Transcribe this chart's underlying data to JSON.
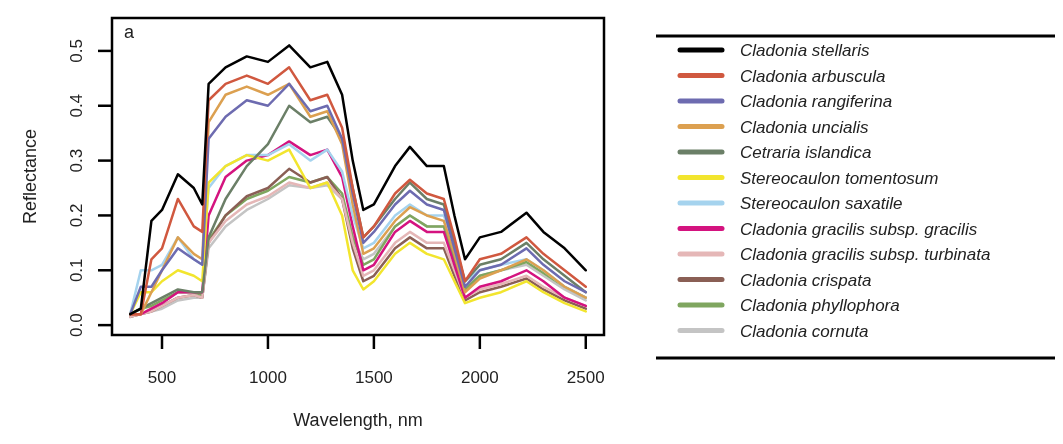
{
  "chart_data": {
    "type": "line",
    "xlabel": "Wavelength, nm",
    "ylabel": "Reflectance",
    "annotations": [
      "a"
    ],
    "x": [
      350,
      400,
      450,
      500,
      575,
      650,
      690,
      720,
      800,
      900,
      1000,
      1100,
      1200,
      1280,
      1350,
      1400,
      1450,
      1500,
      1600,
      1670,
      1750,
      1830,
      1880,
      1930,
      2000,
      2100,
      2220,
      2300,
      2400,
      2500
    ],
    "xlim": [
      264,
      2586
    ],
    "xticks": [
      500,
      1000,
      1500,
      2000,
      2500
    ],
    "ylim": [
      -0.018,
      0.56
    ],
    "yticks": [
      {
        "value": 0,
        "label": "0.0"
      },
      0.1,
      0.2,
      0.3,
      0.4,
      0.5
    ],
    "grid": false,
    "legend": "right",
    "line_style": "solid",
    "marker": "none",
    "series": [
      {
        "name": "Cladonia stellaris",
        "color": "#000000",
        "values": [
          0.02,
          0.03,
          0.19,
          0.21,
          0.275,
          0.25,
          0.22,
          0.44,
          0.47,
          0.49,
          0.48,
          0.51,
          0.47,
          0.48,
          0.42,
          0.3,
          0.21,
          0.22,
          0.29,
          0.325,
          0.29,
          0.29,
          0.2,
          0.12,
          0.16,
          0.17,
          0.205,
          0.17,
          0.14,
          0.1
        ]
      },
      {
        "name": "Cladonia arbuscula",
        "color": "#d0583f",
        "values": [
          0.02,
          0.02,
          0.12,
          0.14,
          0.23,
          0.18,
          0.17,
          0.41,
          0.44,
          0.455,
          0.44,
          0.47,
          0.41,
          0.42,
          0.36,
          0.25,
          0.16,
          0.18,
          0.24,
          0.265,
          0.24,
          0.23,
          0.16,
          0.08,
          0.12,
          0.13,
          0.16,
          0.13,
          0.1,
          0.07
        ]
      },
      {
        "name": "Cladonia rangiferina",
        "color": "#6d6bb0",
        "values": [
          0.02,
          0.07,
          0.07,
          0.1,
          0.14,
          0.12,
          0.11,
          0.34,
          0.38,
          0.41,
          0.4,
          0.44,
          0.39,
          0.4,
          0.34,
          0.24,
          0.15,
          0.17,
          0.22,
          0.245,
          0.22,
          0.21,
          0.14,
          0.07,
          0.1,
          0.11,
          0.14,
          0.11,
          0.08,
          0.06
        ]
      },
      {
        "name": "Cladonia uncialis",
        "color": "#dca050",
        "values": [
          0.02,
          0.02,
          0.06,
          0.1,
          0.16,
          0.13,
          0.12,
          0.37,
          0.42,
          0.435,
          0.42,
          0.44,
          0.38,
          0.39,
          0.33,
          0.22,
          0.13,
          0.14,
          0.19,
          0.215,
          0.2,
          0.19,
          0.13,
          0.06,
          0.085,
          0.1,
          0.12,
          0.1,
          0.07,
          0.05
        ]
      },
      {
        "name": "Cetraria islandica",
        "color": "#6b7f67",
        "values": [
          0.02,
          0.03,
          0.04,
          0.05,
          0.065,
          0.06,
          0.06,
          0.16,
          0.23,
          0.29,
          0.33,
          0.4,
          0.37,
          0.38,
          0.34,
          0.25,
          0.16,
          0.18,
          0.23,
          0.26,
          0.23,
          0.22,
          0.15,
          0.08,
          0.11,
          0.12,
          0.15,
          0.12,
          0.09,
          0.06
        ]
      },
      {
        "name": "Stereocaulon tomentosum",
        "color": "#f2e52e",
        "values": [
          0.02,
          0.06,
          0.06,
          0.08,
          0.1,
          0.09,
          0.08,
          0.26,
          0.29,
          0.31,
          0.3,
          0.32,
          0.25,
          0.26,
          0.2,
          0.1,
          0.065,
          0.08,
          0.13,
          0.15,
          0.13,
          0.12,
          0.08,
          0.04,
          0.05,
          0.06,
          0.08,
          0.06,
          0.04,
          0.025
        ]
      },
      {
        "name": "Stereocaulon saxatile",
        "color": "#a5d3ee",
        "values": [
          0.02,
          0.1,
          0.1,
          0.11,
          0.16,
          0.12,
          0.11,
          0.25,
          0.29,
          0.31,
          0.31,
          0.33,
          0.3,
          0.32,
          0.28,
          0.2,
          0.14,
          0.15,
          0.2,
          0.22,
          0.2,
          0.2,
          0.15,
          0.08,
          0.1,
          0.11,
          0.12,
          0.1,
          0.07,
          0.05
        ]
      },
      {
        "name": "Cladonia gracilis subsp. gracilis",
        "color": "#d4137f",
        "values": [
          0.02,
          0.02,
          0.03,
          0.04,
          0.06,
          0.06,
          0.06,
          0.2,
          0.27,
          0.3,
          0.31,
          0.335,
          0.31,
          0.32,
          0.27,
          0.18,
          0.1,
          0.11,
          0.17,
          0.19,
          0.17,
          0.17,
          0.11,
          0.05,
          0.07,
          0.08,
          0.1,
          0.08,
          0.05,
          0.035
        ]
      },
      {
        "name": "Cladonia gracilis subsp. turbinata",
        "color": "#e5b7b7",
        "values": [
          0.015,
          0.02,
          0.025,
          0.035,
          0.05,
          0.055,
          0.05,
          0.15,
          0.19,
          0.22,
          0.235,
          0.26,
          0.25,
          0.26,
          0.23,
          0.15,
          0.09,
          0.1,
          0.15,
          0.17,
          0.15,
          0.15,
          0.1,
          0.05,
          0.065,
          0.075,
          0.09,
          0.07,
          0.05,
          0.035
        ]
      },
      {
        "name": "Cladonia crispata",
        "color": "#8a5f55",
        "values": [
          0.015,
          0.02,
          0.025,
          0.035,
          0.05,
          0.055,
          0.05,
          0.15,
          0.2,
          0.235,
          0.25,
          0.285,
          0.26,
          0.27,
          0.23,
          0.14,
          0.08,
          0.09,
          0.14,
          0.16,
          0.14,
          0.14,
          0.09,
          0.045,
          0.06,
          0.07,
          0.085,
          0.065,
          0.045,
          0.03
        ]
      },
      {
        "name": "Cladonia phyllophora",
        "color": "#7fa65f",
        "values": [
          0.02,
          0.03,
          0.035,
          0.045,
          0.06,
          0.06,
          0.055,
          0.155,
          0.2,
          0.23,
          0.245,
          0.27,
          0.26,
          0.27,
          0.24,
          0.16,
          0.11,
          0.12,
          0.18,
          0.2,
          0.18,
          0.18,
          0.12,
          0.065,
          0.09,
          0.1,
          0.115,
          0.095,
          0.07,
          0.05
        ]
      },
      {
        "name": "Cladonia cornuta",
        "color": "#c4c4c4",
        "values": [
          0.015,
          0.02,
          0.025,
          0.03,
          0.045,
          0.05,
          0.05,
          0.14,
          0.18,
          0.21,
          0.23,
          0.255,
          0.25,
          0.255,
          0.23,
          0.16,
          0.12,
          0.13,
          0.18,
          0.2,
          0.18,
          0.18,
          0.12,
          0.07,
          0.09,
          0.1,
          0.11,
          0.09,
          0.065,
          0.045
        ]
      }
    ]
  }
}
